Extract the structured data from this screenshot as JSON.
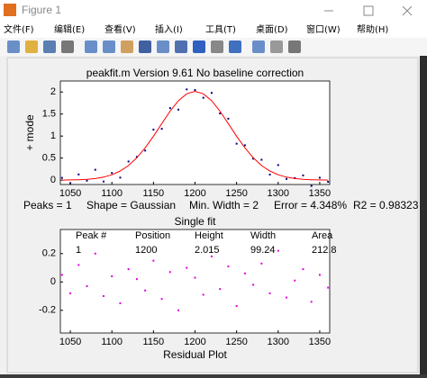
{
  "window": {
    "title": "Figure 1",
    "menu": [
      "文件(F)",
      "编辑(E)",
      "查看(V)",
      "插入(I)",
      "工具(T)",
      "桌面(D)",
      "窗口(W)",
      "帮助(H)"
    ]
  },
  "chart_data": [
    {
      "type": "scatter",
      "title": "peakfit.m Version 9.61    No baseline correction",
      "ylabel": "+ mode",
      "x": [
        1040,
        1050,
        1060,
        1070,
        1080,
        1090,
        1100,
        1110,
        1120,
        1130,
        1140,
        1150,
        1160,
        1170,
        1180,
        1190,
        1200,
        1210,
        1220,
        1230,
        1240,
        1250,
        1260,
        1270,
        1280,
        1290,
        1300,
        1310,
        1320,
        1330,
        1340,
        1350,
        1360
      ],
      "series": [
        {
          "type": "scatter",
          "color": "#000080",
          "values": [
            0.051,
            -0.076,
            0.128,
            -0.013,
            0.235,
            -0.033,
            0.161,
            0.056,
            0.422,
            0.527,
            0.671,
            1.147,
            1.164,
            1.634,
            1.6,
            2.059,
            2.045,
            1.869,
            1.98,
            1.514,
            1.394,
            0.827,
            0.791,
            0.487,
            0.462,
            0.126,
            0.341,
            0.027,
            0.045,
            0.107,
            -0.132,
            0.054,
            -0.039
          ]
        },
        {
          "type": "line",
          "color": "#ff0000",
          "values": [
            0.001,
            0.004,
            0.008,
            0.017,
            0.035,
            0.067,
            0.121,
            0.206,
            0.332,
            0.507,
            0.731,
            0.997,
            1.284,
            1.564,
            1.8,
            1.959,
            2.015,
            1.959,
            1.8,
            1.564,
            1.284,
            0.997,
            0.731,
            0.507,
            0.332,
            0.206,
            0.121,
            0.067,
            0.035,
            0.017,
            0.008,
            0.004,
            0.001
          ]
        }
      ],
      "xlim": [
        1038,
        1362
      ],
      "ylim": [
        -0.1,
        2.25
      ],
      "xticks": [
        1050,
        1100,
        1150,
        1200,
        1250,
        1300,
        1350
      ],
      "yticks": [
        0,
        0.5,
        1,
        1.5,
        2
      ],
      "stats": [
        "Peaks = 1",
        "Shape = Gaussian",
        "Min. Width = 2",
        "Error = 4.348%",
        "R2 = 0.98323"
      ]
    },
    {
      "type": "scatter",
      "title": "Single fit",
      "xlabel": "Residual Plot",
      "x": [
        1040,
        1050,
        1060,
        1070,
        1080,
        1090,
        1100,
        1110,
        1120,
        1130,
        1140,
        1150,
        1160,
        1170,
        1180,
        1190,
        1200,
        1210,
        1220,
        1230,
        1240,
        1250,
        1260,
        1270,
        1280,
        1290,
        1300,
        1310,
        1320,
        1330,
        1340,
        1350,
        1360
      ],
      "series": [
        {
          "type": "scatter",
          "color": "#e000e0",
          "values": [
            0.05,
            -0.08,
            0.12,
            -0.03,
            0.2,
            -0.1,
            0.04,
            -0.15,
            0.09,
            0.02,
            -0.06,
            0.15,
            -0.12,
            0.07,
            -0.2,
            0.1,
            0.03,
            -0.09,
            0.18,
            -0.05,
            0.11,
            -0.17,
            0.06,
            -0.02,
            0.13,
            -0.08,
            0.22,
            -0.11,
            0.01,
            0.09,
            -0.14,
            0.05,
            -0.04
          ]
        }
      ],
      "xlim": [
        1038,
        1362
      ],
      "ylim": [
        -0.36,
        0.37
      ],
      "xticks": [
        1050,
        1100,
        1150,
        1200,
        1250,
        1300,
        1350
      ],
      "yticks": [
        -0.2,
        0,
        0.2
      ],
      "table": {
        "headers": [
          "Peak #",
          "Position",
          "Height",
          "Width",
          "Area"
        ],
        "rows": [
          [
            1,
            1200,
            2.015,
            99.24,
            212.8
          ]
        ]
      }
    }
  ]
}
